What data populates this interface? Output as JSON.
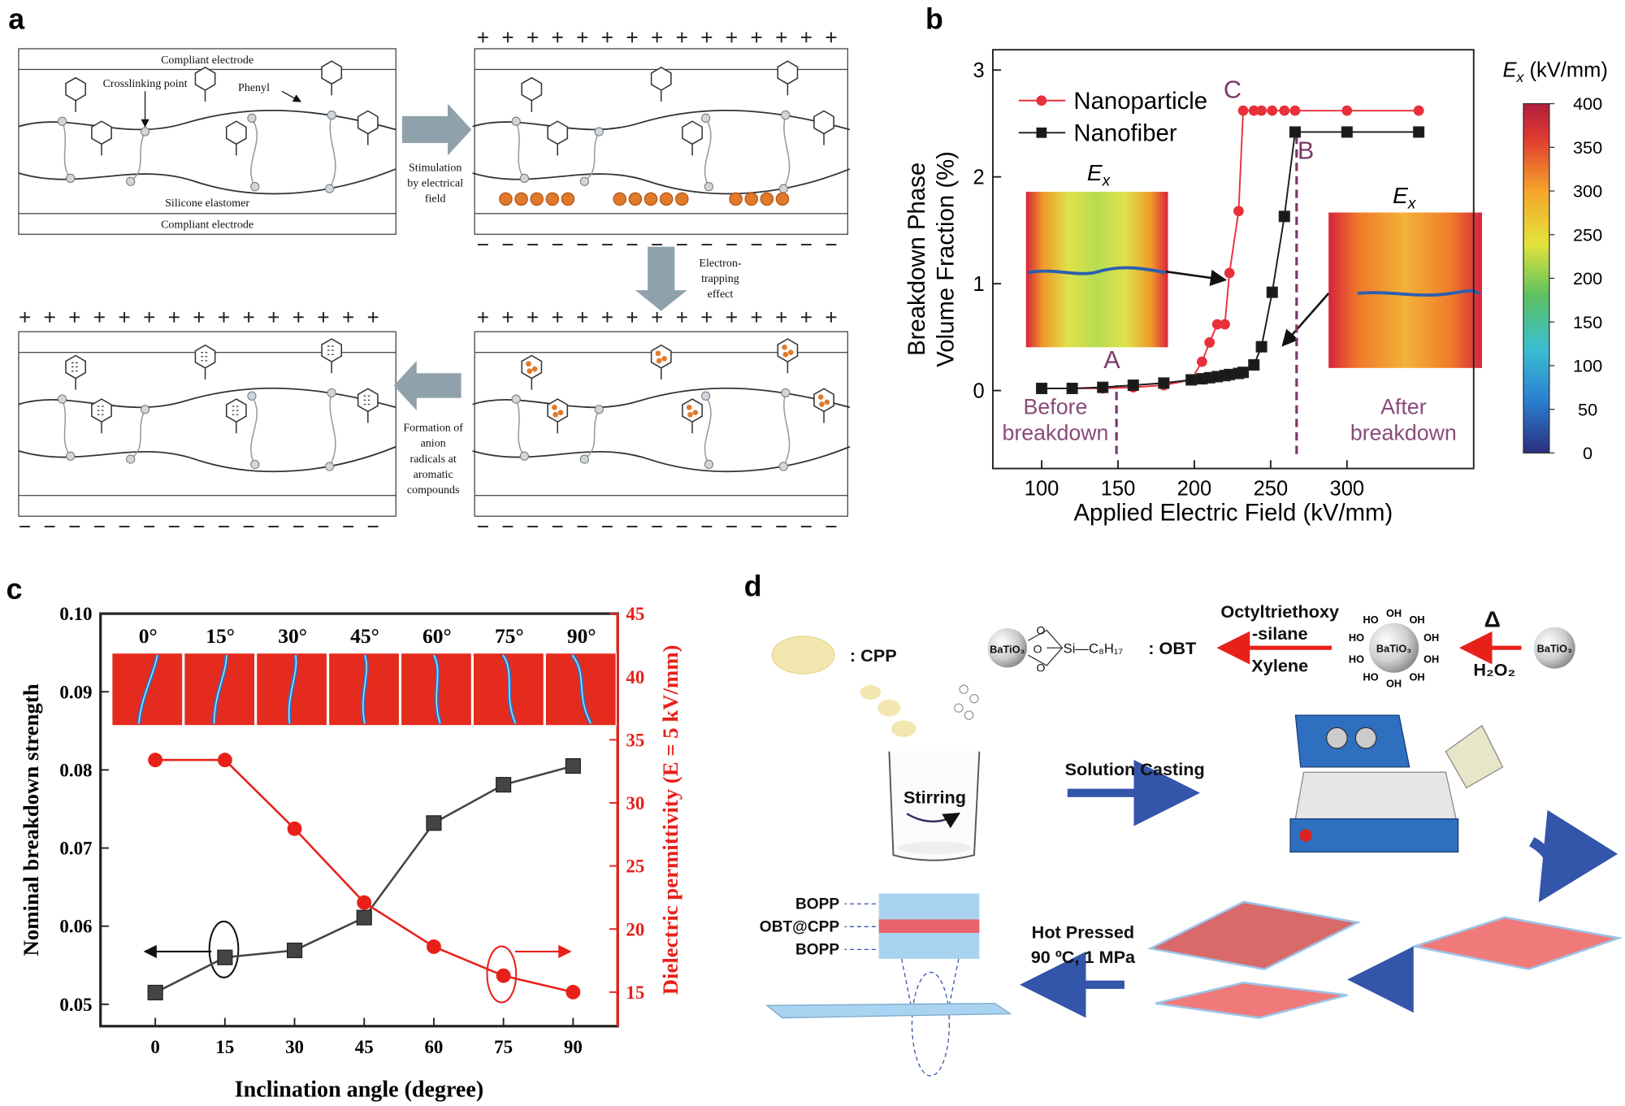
{
  "panel_labels": [
    "a",
    "b",
    "c",
    "d"
  ],
  "panel_a": {
    "top_electrode": "Compliant electrode",
    "bottom_electrode": "Compliant electrode",
    "crosslinking": "Crosslinking point",
    "phenyl": "Phenyl",
    "elastomer": "Silicone elastomer",
    "step1": [
      "Stimulation",
      "by electrical",
      "field"
    ],
    "step2": [
      "Electron-",
      "trapping",
      "effect"
    ],
    "step3": [
      "Formation of",
      "anion",
      "radicals at",
      "aromatic",
      "compounds"
    ]
  },
  "chart_data": [
    {
      "type": "line",
      "xlabel": "Applied Electric Field (kV/mm)",
      "ylabel": [
        "Breakdown Phase",
        "Volume  Fraction (%)"
      ],
      "x": [
        100,
        120,
        140,
        160,
        180,
        198,
        205,
        210,
        215,
        220,
        223,
        229,
        232,
        239,
        244,
        251,
        259,
        266,
        300,
        347
      ],
      "series": [
        {
          "name": "Nanoparticle",
          "color": "#e8303a",
          "marker": "circle",
          "values": [
            0.02,
            0.02,
            0.02,
            0.03,
            0.05,
            0.1,
            0.27,
            0.45,
            0.62,
            0.62,
            1.1,
            1.68,
            2.62,
            2.62,
            2.62,
            2.62,
            2.62,
            2.62,
            2.62,
            2.62
          ]
        },
        {
          "name": "Nanofiber",
          "color": "#1a1a1a",
          "marker": "square",
          "values": [
            0.02,
            0.02,
            0.03,
            0.05,
            0.07,
            0.1,
            0.11,
            0.12,
            0.13,
            0.14,
            0.15,
            0.16,
            0.17,
            0.24,
            0.41,
            0.92,
            1.63,
            2.42,
            2.42,
            2.42
          ]
        }
      ],
      "xlim": [
        68,
        383
      ],
      "ylim": [
        -0.73,
        3.19
      ],
      "xticks": [
        100,
        150,
        200,
        250,
        300
      ],
      "yticks": [
        0,
        1,
        2,
        3
      ],
      "legend": "upper left",
      "annotations": [
        {
          "text": "A",
          "x": 146,
          "y": 0.21
        },
        {
          "text": "B",
          "x": 273,
          "y": 2.17
        },
        {
          "text": "C",
          "x": 225,
          "y": 2.74
        }
      ],
      "vlines": [
        {
          "x": 149,
          "y": 0.05
        },
        {
          "x": 267,
          "y": 2.42
        }
      ],
      "notes": [
        {
          "lines": [
            "Before",
            "breakdown"
          ],
          "x": 109,
          "y": -0.22
        },
        {
          "lines": [
            "After",
            "breakdown"
          ],
          "x": 337,
          "y": -0.22
        }
      ],
      "inset_label": {
        "symbol": "E",
        "subscript": "x"
      },
      "colorbar": {
        "symbol": "E",
        "subscript": "x",
        "unit": " (kV/mm)",
        "lim": [
          0,
          400
        ],
        "ticks": [
          0,
          50,
          100,
          150,
          200,
          250,
          300,
          350,
          400
        ]
      }
    },
    {
      "type": "line",
      "xlabel": "Inclination angle (degree)",
      "ylabel": "Nominal breakdown strength",
      "y2label": "Dielectric permittivity (E = 5 kV/mm)",
      "x": [
        0,
        15,
        30,
        45,
        60,
        75,
        90
      ],
      "series": [
        {
          "color": "#444444",
          "marker": "square",
          "values": [
            0.0515,
            0.056,
            0.0569,
            0.0611,
            0.0732,
            0.0781,
            0.0805
          ]
        },
        {
          "color": "#e8201a",
          "marker": "circle",
          "axis": "y2",
          "values": [
            33.4,
            33.4,
            27.95,
            22.1,
            18.6,
            16.3,
            15.0
          ]
        }
      ],
      "xlim": [
        -11.8,
        99.6
      ],
      "ylim": [
        0.0472,
        0.1
      ],
      "y2lim": [
        12.3,
        45
      ],
      "xticks": [
        0,
        15,
        30,
        45,
        60,
        75,
        90
      ],
      "yticks": [
        0.05,
        0.06,
        0.07,
        0.08,
        0.09,
        {
          "value": 0.1,
          "label": "0.10"
        }
      ],
      "y2ticks": [
        15,
        20,
        25,
        30,
        35,
        40,
        45
      ],
      "inset_angles": [
        "0°",
        "15°",
        "30°",
        "45°",
        "60°",
        "75°",
        "90°"
      ]
    }
  ],
  "panel_d": {
    "cpp_label": ":  CPP",
    "obt_core": "BaTiO₃",
    "obt_oxygens": [
      "O",
      "O",
      "O"
    ],
    "obt_chain": "Si—C₈H₁₇",
    "obt_label": ":  OBT",
    "silane": [
      "Octyltriethoxy",
      "-silane"
    ],
    "solvent": "Xylene",
    "hydroxyls": [
      "OH",
      "OH",
      "OH",
      "OH",
      "OH",
      "OH",
      "HO",
      "HO",
      "HO",
      "HO"
    ],
    "hydroxylated_core": "BaTiO₃",
    "heat": "Δ",
    "oxidant": "H₂O₂",
    "raw_core": "BaTiO₃",
    "stirring": "Stirring",
    "casting": "Solution Casting",
    "pressing": [
      "Hot Pressed",
      "90 ºC, 1 MPa"
    ],
    "layers": [
      "BOPP",
      "OBT@CPP",
      "BOPP"
    ]
  }
}
